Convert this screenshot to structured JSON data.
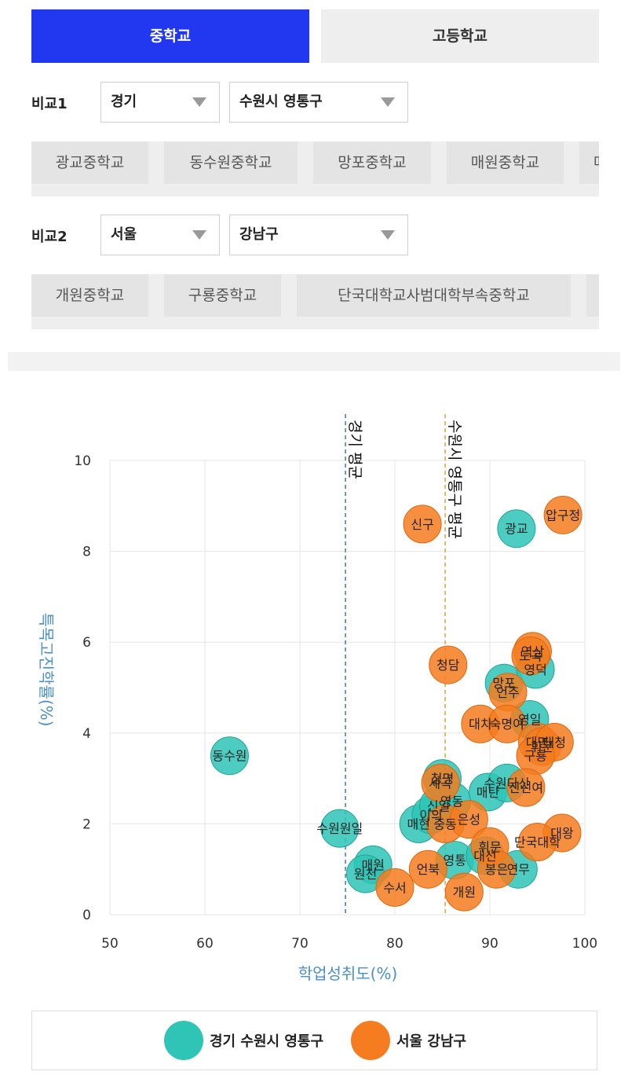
{
  "tabs": {
    "middle": "중학교",
    "high": "고등학교"
  },
  "compare1": {
    "label": "비교1",
    "region": "경기",
    "district": "수원시 영통구",
    "schools": [
      "광교중학교",
      "동수원중학교",
      "망포중학교",
      "매원중학교",
      "매"
    ]
  },
  "compare2": {
    "label": "비교2",
    "region": "서울",
    "district": "강남구",
    "schools": [
      "개원중학교",
      "구룡중학교",
      "단국대학교사범대학부속중학교",
      ""
    ]
  },
  "legend": {
    "series1": "경기 수원시 영통구",
    "series2": "서울 강남구"
  },
  "colors": {
    "series1": "#2ec4b6",
    "series2": "#f57c1f",
    "tab_active": "#2238f0",
    "axis_title": "#4a90c8"
  },
  "chart_data": {
    "type": "scatter",
    "xlabel": "학업성취도(%)",
    "ylabel": "특목고진학률(%)",
    "xlim": [
      50,
      100
    ],
    "ylim": [
      0,
      10
    ],
    "xticks": [
      "50",
      "60",
      "70",
      "80",
      "90",
      "100"
    ],
    "yticks": [
      "0",
      "2",
      "4",
      "6",
      "8",
      "10"
    ],
    "grid": true,
    "reference_lines": [
      {
        "label": "경기 평균",
        "x": 74.8
      },
      {
        "label": "수원시 영통구 평균",
        "x": 85.3
      }
    ],
    "series": [
      {
        "name": "경기 수원시 영통구",
        "points": [
          {
            "label": "광교",
            "x": 92.8,
            "y": 8.5
          },
          {
            "label": "동수원",
            "x": 62.6,
            "y": 3.5
          },
          {
            "label": "수원원일",
            "x": 74.2,
            "y": 1.9
          },
          {
            "label": "매원",
            "x": 77.7,
            "y": 1.1
          },
          {
            "label": "원천",
            "x": 76.9,
            "y": 0.9
          },
          {
            "label": "매현",
            "x": 82.5,
            "y": 2.0
          },
          {
            "label": "이의",
            "x": 83.8,
            "y": 2.2
          },
          {
            "label": "신일",
            "x": 84.6,
            "y": 2.4
          },
          {
            "label": "영동",
            "x": 86.0,
            "y": 2.5
          },
          {
            "label": "청명",
            "x": 85.0,
            "y": 3.0
          },
          {
            "label": "영통",
            "x": 86.3,
            "y": 1.2
          },
          {
            "label": "매탄",
            "x": 89.8,
            "y": 2.7
          },
          {
            "label": "수원다산",
            "x": 91.8,
            "y": 2.9
          },
          {
            "label": "망포",
            "x": 91.5,
            "y": 5.1
          },
          {
            "label": "영덕",
            "x": 94.8,
            "y": 5.4
          },
          {
            "label": "영일",
            "x": 94.2,
            "y": 4.3
          },
          {
            "label": "연무",
            "x": 93.0,
            "y": 1.0
          },
          {
            "label": "대선",
            "x": 89.5,
            "y": 1.3
          }
        ]
      },
      {
        "name": "서울 강남구",
        "points": [
          {
            "label": "압구정",
            "x": 97.7,
            "y": 8.8
          },
          {
            "label": "신구",
            "x": 82.9,
            "y": 8.6
          },
          {
            "label": "청담",
            "x": 85.6,
            "y": 5.5
          },
          {
            "label": "역삼",
            "x": 94.5,
            "y": 5.8
          },
          {
            "label": "도곡",
            "x": 94.3,
            "y": 5.7
          },
          {
            "label": "언주",
            "x": 91.9,
            "y": 4.9
          },
          {
            "label": "대치",
            "x": 89.0,
            "y": 4.2
          },
          {
            "label": "숙명여",
            "x": 91.8,
            "y": 4.2
          },
          {
            "label": "대명",
            "x": 95.0,
            "y": 3.8
          },
          {
            "label": "휘문",
            "x": 95.5,
            "y": 3.7
          },
          {
            "label": "대청",
            "x": 96.8,
            "y": 3.8
          },
          {
            "label": "구룡",
            "x": 94.8,
            "y": 3.5
          },
          {
            "label": "진선여",
            "x": 93.8,
            "y": 2.8
          },
          {
            "label": "세곡",
            "x": 84.8,
            "y": 2.9
          },
          {
            "label": "중동",
            "x": 85.3,
            "y": 2.0
          },
          {
            "label": "은성",
            "x": 87.8,
            "y": 2.1
          },
          {
            "label": "대왕",
            "x": 97.6,
            "y": 1.8
          },
          {
            "label": "단국대학",
            "x": 95.0,
            "y": 1.6
          },
          {
            "label": "휘문",
            "x": 90.0,
            "y": 1.5
          },
          {
            "label": "봉은",
            "x": 90.7,
            "y": 1.0
          },
          {
            "label": "언북",
            "x": 83.5,
            "y": 1.0
          },
          {
            "label": "수서",
            "x": 80.0,
            "y": 0.6
          },
          {
            "label": "개원",
            "x": 87.3,
            "y": 0.5
          }
        ]
      }
    ]
  }
}
